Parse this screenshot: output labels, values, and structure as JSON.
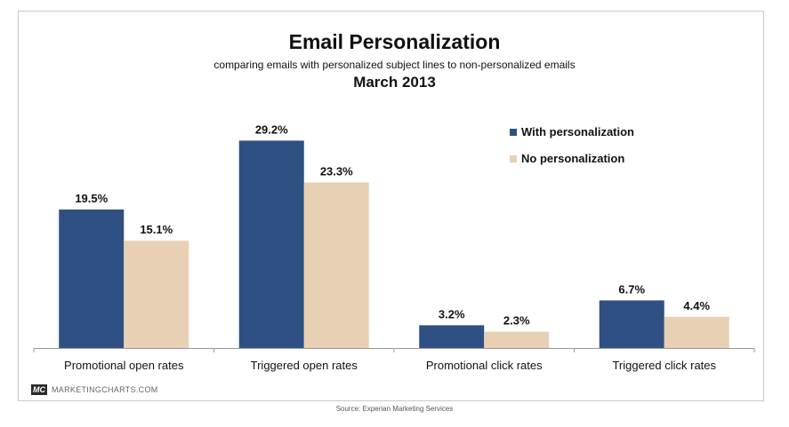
{
  "chart_data": {
    "type": "bar",
    "title": "Email Personalization",
    "subtitle": "comparing emails with personalized subject lines to non-personalized emails",
    "date": "March 2013",
    "categories": [
      "Promotional open rates",
      "Triggered open rates",
      "Promotional click rates",
      "Triggered click rates"
    ],
    "series": [
      {
        "name": "With personalization",
        "values": [
          19.5,
          29.2,
          3.2,
          6.7
        ],
        "labels": [
          "19.5%",
          "29.2%",
          "3.2%",
          "6.7%"
        ],
        "color": "#2f5082"
      },
      {
        "name": "No personalization",
        "values": [
          15.1,
          23.3,
          2.3,
          4.4
        ],
        "labels": [
          "15.1%",
          "23.3%",
          "2.3%",
          "4.4%"
        ],
        "color": "#e8d0b5"
      }
    ],
    "ylim": [
      0,
      35
    ],
    "grid": false,
    "legend_position": "top-right"
  },
  "branding": {
    "logo": "MC",
    "site": "MARKETINGCHARTS.COM"
  },
  "source": "Source: Experian Marketing Services"
}
